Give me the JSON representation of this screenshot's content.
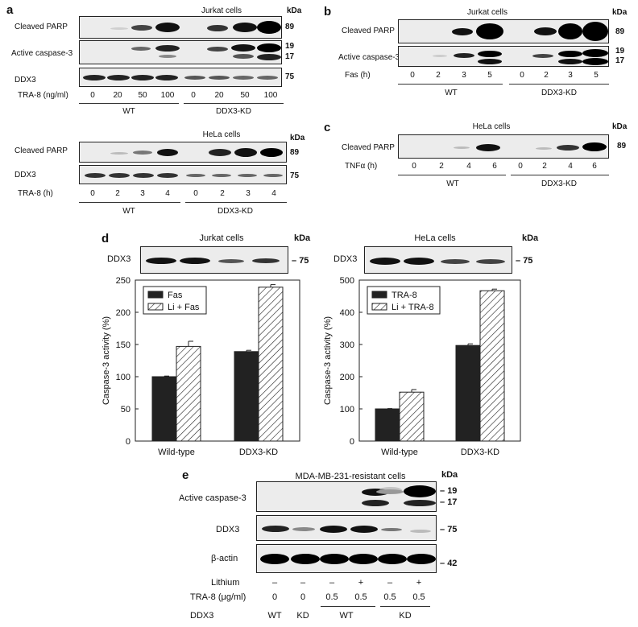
{
  "panels": {
    "a": "a",
    "b": "b",
    "c": "c",
    "d": "d",
    "e": "e"
  },
  "a_top": {
    "title": "Jurkat cells",
    "kda": "kDa",
    "rows": [
      "Cleaved  PARP",
      "Active caspase-3",
      "DDX3"
    ],
    "mw": [
      "89",
      "19",
      "17",
      "75"
    ],
    "treat_label": "TRA-8 (ng/ml)",
    "lanes": [
      "0",
      "20",
      "50",
      "100",
      "0",
      "20",
      "50",
      "100"
    ],
    "groups": [
      "WT",
      "DDX3-KD"
    ]
  },
  "a_bot": {
    "title": "HeLa cells",
    "kda": "kDa",
    "rows": [
      "Cleaved PARP",
      "DDX3"
    ],
    "mw": [
      "89",
      "75"
    ],
    "treat_label": "TRA-8 (h)",
    "lanes": [
      "0",
      "2",
      "3",
      "4",
      "0",
      "2",
      "3",
      "4"
    ],
    "groups": [
      "WT",
      "DDX3-KD"
    ]
  },
  "b": {
    "title": "Jurkat cells",
    "kda": "kDa",
    "rows": [
      "Cleaved PARP",
      "Active caspase-3"
    ],
    "mw": [
      "89",
      "19",
      "17"
    ],
    "treat_label": "Fas (h)",
    "lanes": [
      "0",
      "2",
      "3",
      "5",
      "0",
      "2",
      "3",
      "5"
    ],
    "groups": [
      "WT",
      "DDX3-KD"
    ]
  },
  "c": {
    "title": "HeLa cells",
    "kda": "kDa",
    "rows": [
      "Cleaved PARP"
    ],
    "mw": [
      "89"
    ],
    "treat_label": "TNFα (h)",
    "lanes": [
      "0",
      "2",
      "4",
      "6",
      "0",
      "2",
      "4",
      "6"
    ],
    "groups": [
      "WT",
      "DDX3-KD"
    ]
  },
  "d_left_blot": {
    "title": "Jurkat cells",
    "kda": "kDa",
    "row": "DDX3",
    "mw": "75"
  },
  "d_right_blot": {
    "title": "HeLa cells",
    "kda": "kDa",
    "row": "DDX3",
    "mw": "75"
  },
  "e": {
    "title": "MDA-MB-231-resistant cells",
    "kda": "kDa",
    "rows": [
      "Active caspase-3",
      "DDX3",
      "β-actin"
    ],
    "mw": [
      "19",
      "17",
      "75",
      "42"
    ],
    "lithium_label": "Lithium",
    "lithium": [
      "–",
      "–",
      "–",
      "+",
      "–",
      "+"
    ],
    "tra_label": "TRA-8 (μg/ml)",
    "tra": [
      "0",
      "0",
      "0.5",
      "0.5",
      "0.5",
      "0.5"
    ],
    "ddx3_label": "DDX3",
    "ddx3": [
      "WT",
      "KD",
      "WT",
      "KD"
    ]
  },
  "chart_data": [
    {
      "type": "bar",
      "ylabel": "Caspase-3 activity (%)",
      "categories": [
        "Wild-type",
        "DDX3-KD"
      ],
      "ylim": [
        0,
        250
      ],
      "yticks": [
        "0",
        "50",
        "100",
        "150",
        "200",
        "250"
      ],
      "legend_position": "top-left",
      "series": [
        {
          "name": "Fas",
          "values": [
            100,
            139
          ],
          "errors": [
            1,
            2
          ],
          "color": "#222222",
          "pattern": "solid"
        },
        {
          "name": "Li + Fas",
          "values": [
            147,
            239
          ],
          "errors": [
            8,
            4
          ],
          "color": "#222222",
          "pattern": "hatched"
        }
      ]
    },
    {
      "type": "bar",
      "ylabel": "Caspase-3 activity (%)",
      "categories": [
        "Wild-type",
        "DDX3-KD"
      ],
      "ylim": [
        0,
        500
      ],
      "yticks": [
        "0",
        "100",
        "200",
        "300",
        "400",
        "500"
      ],
      "legend_position": "top-left",
      "series": [
        {
          "name": "TRA-8",
          "values": [
            100,
            297
          ],
          "errors": [
            1,
            5
          ],
          "color": "#222222",
          "pattern": "solid"
        },
        {
          "name": "Li + TRA-8",
          "values": [
            152,
            467
          ],
          "errors": [
            8,
            5
          ],
          "color": "#222222",
          "pattern": "hatched"
        }
      ]
    }
  ]
}
